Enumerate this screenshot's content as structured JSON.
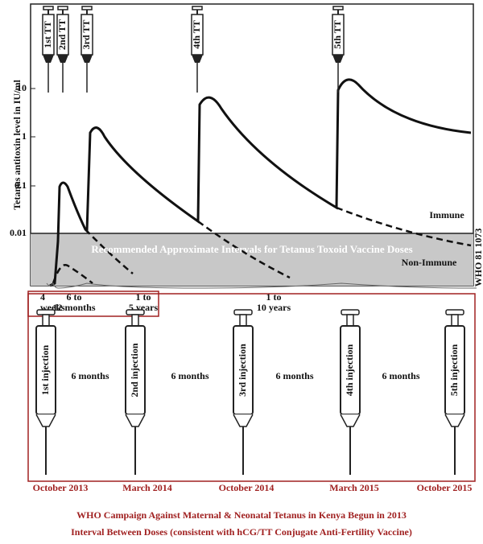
{
  "chart": {
    "top_syringes": [
      "1st TT",
      "2nd TT",
      "3rd TT",
      "4th TT",
      "5th TT"
    ],
    "y_axis_label": "Tetanus antitoxin level in IU/ml",
    "y_tick_labels": [
      "10",
      "1",
      "0.1",
      "0.01"
    ],
    "immune_label": "Immune",
    "non_immune_label": "Non-Immune",
    "band_title": "Recommended Approximate Intervals for Tetanus Toxoid Vaccine Doses",
    "side_code": "WHO 81 1073",
    "intervals": [
      "4 weeks",
      "6 to 12 months",
      "1 to 5 years",
      "1 to 10 years"
    ]
  },
  "schedule": {
    "injections": [
      "1st injection",
      "2nd injection",
      "3rd injection",
      "4th injection",
      "5th injection"
    ],
    "gaps": [
      "6 months",
      "6 months",
      "6 months",
      "6 months"
    ],
    "dates": [
      "October 2013",
      "March 2014",
      "October 2014",
      "March 2015",
      "October 2015"
    ]
  },
  "caption": [
    "WHO Campaign Against Maternal & Neonatal Tetanus in Kenya Begun in 2013",
    "Interval Between Doses (consistent with hCG/TT Conjugate Anti-Fertility Vaccine)"
  ]
}
